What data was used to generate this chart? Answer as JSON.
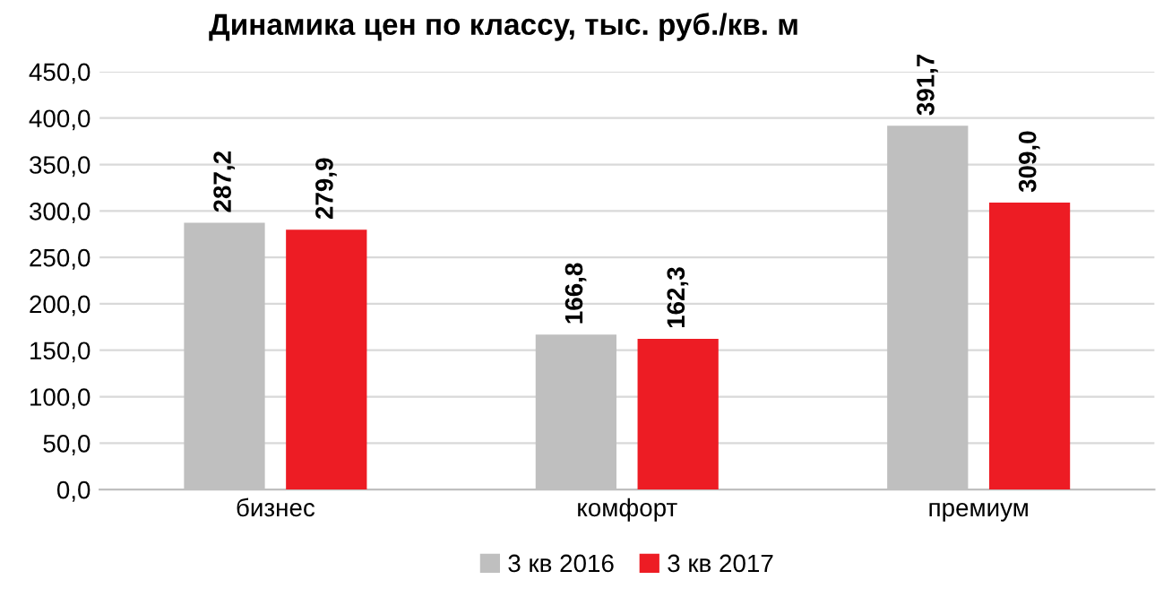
{
  "chart_data": {
    "type": "bar",
    "title": "Динамика цен по классу, тыс. руб./кв. м",
    "categories": [
      "бизнес",
      "комфорт",
      "премиум"
    ],
    "series": [
      {
        "name": "3 кв 2016",
        "color": "#bfbfbf",
        "values": [
          287.2,
          166.8,
          391.7
        ],
        "value_labels": [
          "287,2",
          "166,8",
          "391,7"
        ]
      },
      {
        "name": "3 кв 2017",
        "color": "#ed1c24",
        "values": [
          279.9,
          162.3,
          309.0
        ],
        "value_labels": [
          "279,9",
          "162,3",
          "309,0"
        ]
      }
    ],
    "ylim": [
      0,
      450
    ],
    "yticks": [
      {
        "value": 0,
        "label": "0,0"
      },
      {
        "value": 50,
        "label": "50,0"
      },
      {
        "value": 100,
        "label": "100,0"
      },
      {
        "value": 150,
        "label": "150,0"
      },
      {
        "value": 200,
        "label": "200,0"
      },
      {
        "value": 250,
        "label": "250,0"
      },
      {
        "value": 300,
        "label": "300,0"
      },
      {
        "value": 350,
        "label": "350,0"
      },
      {
        "value": 400,
        "label": "400,0"
      },
      {
        "value": 450,
        "label": "450,0"
      }
    ],
    "grid": "y",
    "legend": "bottom"
  }
}
